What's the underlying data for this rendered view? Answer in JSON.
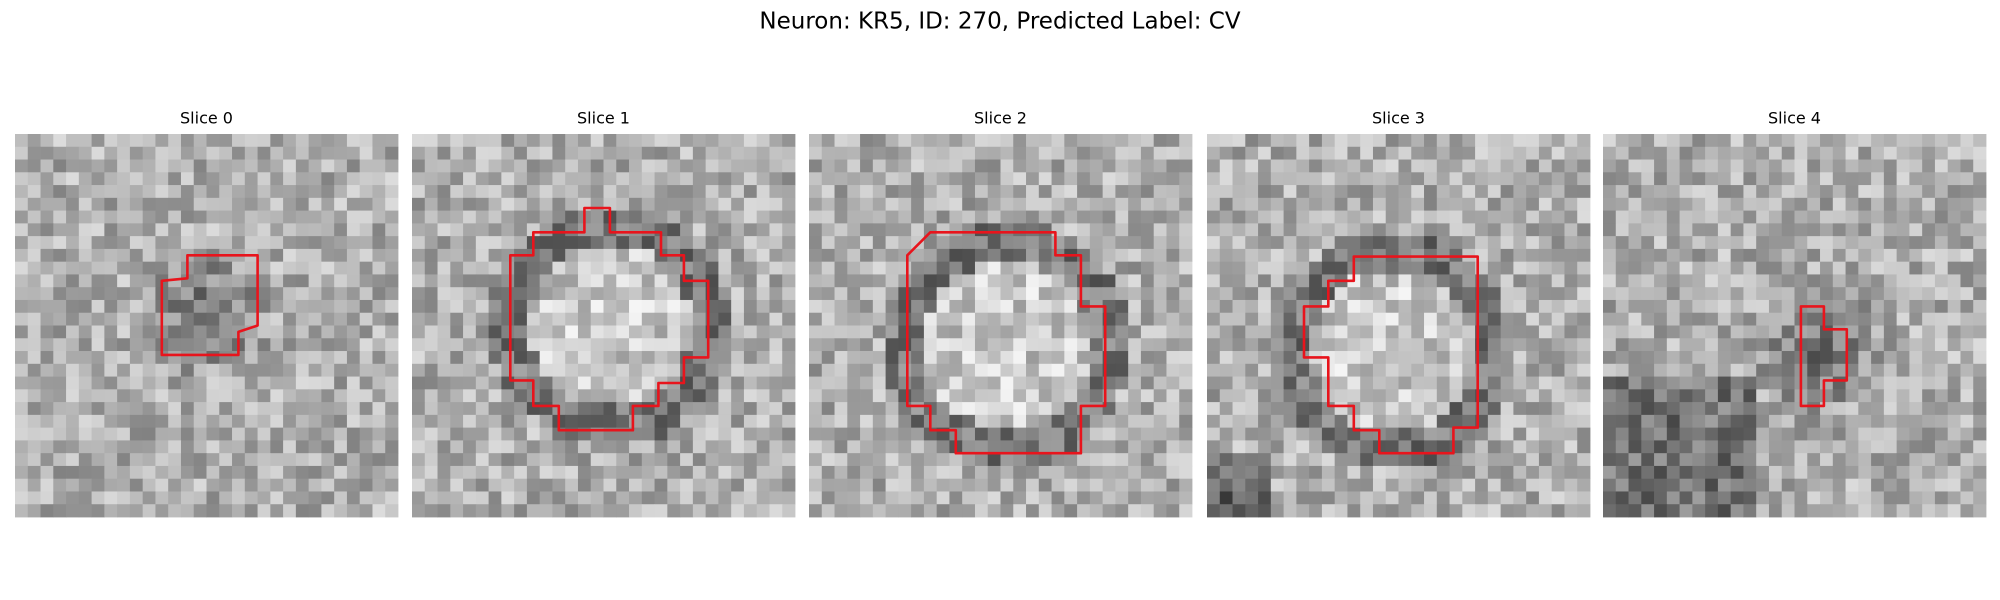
{
  "title": "Neuron: KR5, ID: 270, Predicted Label: CV",
  "panels": [
    {
      "label": "Slice 0"
    },
    {
      "label": "Slice 1"
    },
    {
      "label": "Slice 2"
    },
    {
      "label": "Slice 3"
    },
    {
      "label": "Slice 4"
    }
  ]
}
